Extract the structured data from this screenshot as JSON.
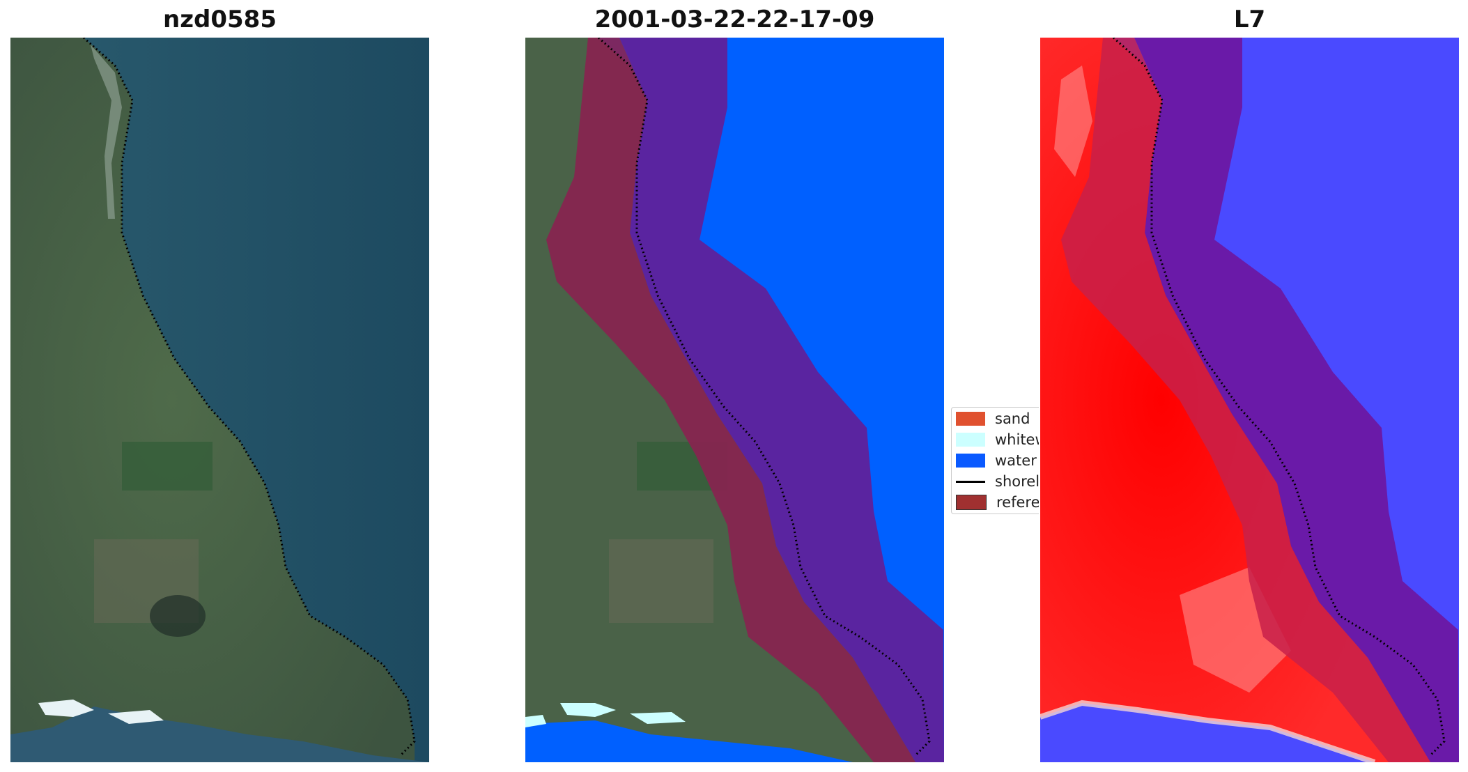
{
  "panels": [
    {
      "title": "nzd0585"
    },
    {
      "title": "2001-03-22-22-17-09"
    },
    {
      "title": "L7"
    }
  ],
  "legend": {
    "items": [
      {
        "label": "sand",
        "color": "#e0512f"
      },
      {
        "label": "whitewater",
        "color": "#ccffff"
      },
      {
        "label": "water",
        "color": "#0a5aff"
      },
      {
        "label": "shoreline",
        "color": "#000000",
        "kind": "line"
      },
      {
        "label": "reference shoreline buffer",
        "color": "#a03030"
      }
    ]
  },
  "colors": {
    "land": "#4a6248",
    "ocean": "#1f5068",
    "water_class": "#0060ff",
    "buffer_land": "#8a2250",
    "buffer_water": "#5a24a0",
    "index_positive": "#ff1a1a",
    "index_negative": "#4a4aff"
  }
}
